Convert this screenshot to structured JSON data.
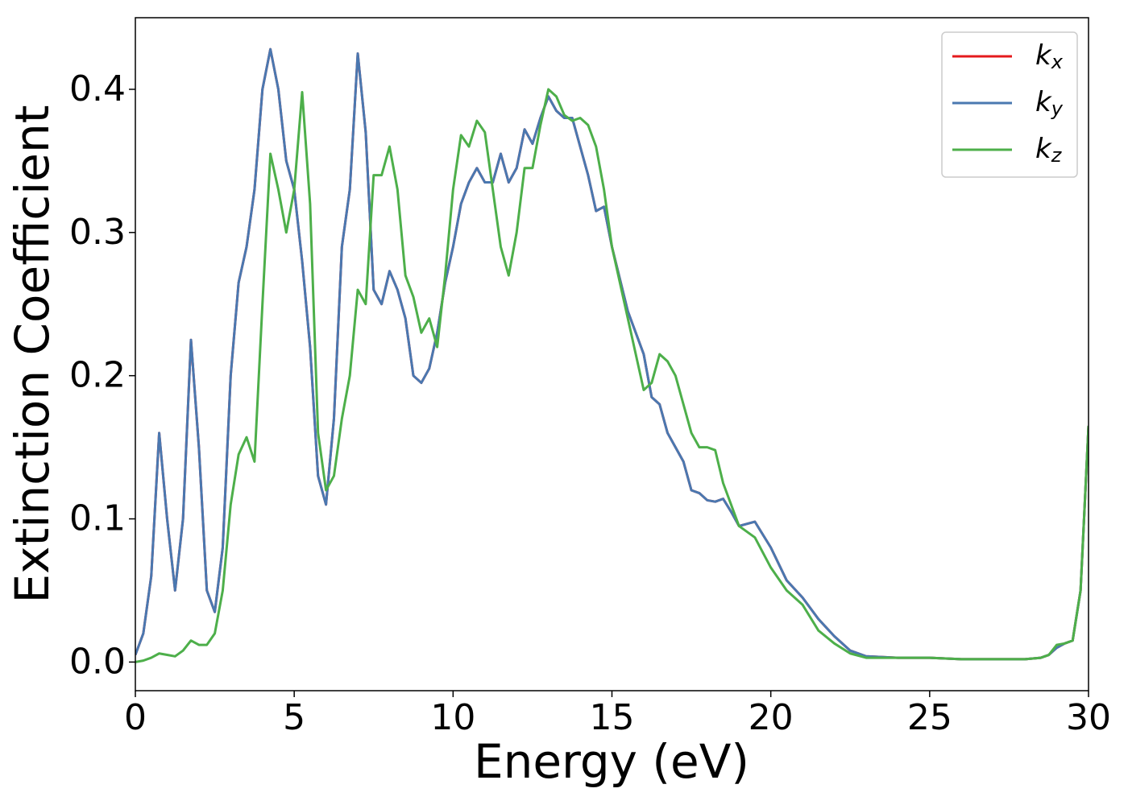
{
  "chart_data": {
    "type": "line",
    "xlabel": "Energy (eV)",
    "ylabel": "Extinction Coefficient",
    "x": [
      0,
      0.25,
      0.5,
      0.75,
      1,
      1.25,
      1.5,
      1.75,
      2,
      2.25,
      2.5,
      2.75,
      3,
      3.25,
      3.5,
      3.75,
      4,
      4.25,
      4.5,
      4.75,
      5,
      5.25,
      5.5,
      5.75,
      6,
      6.25,
      6.5,
      6.75,
      7,
      7.25,
      7.5,
      7.75,
      8,
      8.25,
      8.5,
      8.75,
      9,
      9.25,
      9.5,
      9.75,
      10,
      10.25,
      10.5,
      10.75,
      11,
      11.25,
      11.5,
      11.75,
      12,
      12.25,
      12.5,
      12.75,
      13,
      13.25,
      13.5,
      13.75,
      14,
      14.25,
      14.5,
      14.75,
      15,
      15.5,
      16,
      16.25,
      16.5,
      16.75,
      17,
      17.25,
      17.5,
      17.75,
      18,
      18.25,
      18.5,
      18.75,
      19,
      19.5,
      20,
      20.5,
      21,
      21.5,
      22,
      22.5,
      23,
      24,
      25,
      26,
      27,
      28,
      28.5,
      28.75,
      29,
      29.25,
      29.5,
      29.75,
      30
    ],
    "series": [
      {
        "name": "kx",
        "color": "#e41a1c",
        "values": [
          0.005,
          0.02,
          0.06,
          0.16,
          0.1,
          0.05,
          0.1,
          0.225,
          0.15,
          0.05,
          0.035,
          0.08,
          0.2,
          0.265,
          0.29,
          0.33,
          0.4,
          0.428,
          0.4,
          0.35,
          0.33,
          0.28,
          0.22,
          0.13,
          0.11,
          0.17,
          0.29,
          0.33,
          0.425,
          0.37,
          0.26,
          0.25,
          0.273,
          0.26,
          0.24,
          0.2,
          0.195,
          0.205,
          0.23,
          0.265,
          0.29,
          0.32,
          0.335,
          0.345,
          0.335,
          0.335,
          0.355,
          0.335,
          0.345,
          0.372,
          0.362,
          0.38,
          0.395,
          0.385,
          0.38,
          0.38,
          0.36,
          0.34,
          0.315,
          0.318,
          0.29,
          0.245,
          0.215,
          0.185,
          0.18,
          0.16,
          0.15,
          0.14,
          0.12,
          0.118,
          0.113,
          0.112,
          0.114,
          0.105,
          0.095,
          0.098,
          0.08,
          0.057,
          0.045,
          0.03,
          0.018,
          0.008,
          0.004,
          0.003,
          0.003,
          0.002,
          0.002,
          0.002,
          0.003,
          0.005,
          0.01,
          0.013,
          0.015,
          0.05,
          0.165
        ]
      },
      {
        "name": "ky",
        "color": "#4a78b0",
        "values": [
          0.005,
          0.02,
          0.06,
          0.16,
          0.1,
          0.05,
          0.1,
          0.225,
          0.15,
          0.05,
          0.035,
          0.08,
          0.2,
          0.265,
          0.29,
          0.33,
          0.4,
          0.428,
          0.4,
          0.35,
          0.33,
          0.28,
          0.22,
          0.13,
          0.11,
          0.17,
          0.29,
          0.33,
          0.425,
          0.37,
          0.26,
          0.25,
          0.273,
          0.26,
          0.24,
          0.2,
          0.195,
          0.205,
          0.23,
          0.265,
          0.29,
          0.32,
          0.335,
          0.345,
          0.335,
          0.335,
          0.355,
          0.335,
          0.345,
          0.372,
          0.362,
          0.38,
          0.395,
          0.385,
          0.38,
          0.38,
          0.36,
          0.34,
          0.315,
          0.318,
          0.29,
          0.245,
          0.215,
          0.185,
          0.18,
          0.16,
          0.15,
          0.14,
          0.12,
          0.118,
          0.113,
          0.112,
          0.114,
          0.105,
          0.095,
          0.098,
          0.08,
          0.057,
          0.045,
          0.03,
          0.018,
          0.008,
          0.004,
          0.003,
          0.003,
          0.002,
          0.002,
          0.002,
          0.003,
          0.005,
          0.01,
          0.013,
          0.015,
          0.05,
          0.165
        ]
      },
      {
        "name": "kz",
        "color": "#4daf4a",
        "values": [
          0,
          0.001,
          0.003,
          0.006,
          0.005,
          0.004,
          0.008,
          0.015,
          0.012,
          0.012,
          0.02,
          0.05,
          0.11,
          0.145,
          0.157,
          0.14,
          0.25,
          0.355,
          0.33,
          0.3,
          0.33,
          0.398,
          0.32,
          0.16,
          0.12,
          0.13,
          0.17,
          0.2,
          0.26,
          0.25,
          0.34,
          0.34,
          0.36,
          0.33,
          0.27,
          0.255,
          0.23,
          0.24,
          0.22,
          0.27,
          0.33,
          0.368,
          0.36,
          0.378,
          0.37,
          0.33,
          0.29,
          0.27,
          0.3,
          0.345,
          0.345,
          0.375,
          0.4,
          0.395,
          0.382,
          0.378,
          0.38,
          0.375,
          0.36,
          0.33,
          0.29,
          0.24,
          0.19,
          0.195,
          0.215,
          0.21,
          0.2,
          0.18,
          0.16,
          0.15,
          0.15,
          0.148,
          0.125,
          0.11,
          0.095,
          0.087,
          0.066,
          0.05,
          0.04,
          0.022,
          0.013,
          0.006,
          0.003,
          0.003,
          0.003,
          0.002,
          0.002,
          0.002,
          0.003,
          0.005,
          0.012,
          0.013,
          0.015,
          0.05,
          0.165
        ]
      }
    ],
    "xlim": [
      0,
      30
    ],
    "xticks": [
      0,
      5,
      10,
      15,
      20,
      25,
      30
    ],
    "ylim": [
      -0.02,
      0.45
    ],
    "yticks": [
      {
        "value": 0,
        "label": "0.0"
      },
      0.1,
      0.2,
      0.3,
      0.4
    ],
    "grid": false,
    "legend": "upper right"
  }
}
